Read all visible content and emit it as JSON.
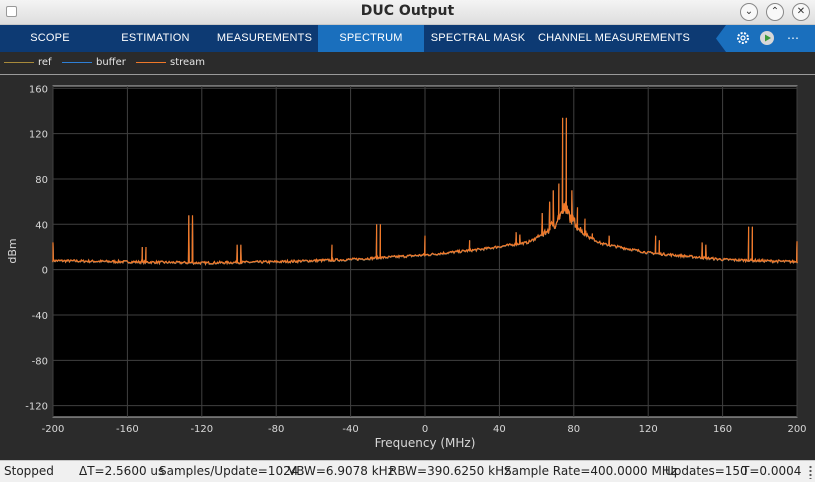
{
  "window": {
    "title": "DUC Output"
  },
  "tabs": [
    {
      "label": "SCOPE",
      "active": false
    },
    {
      "label": "ESTIMATION",
      "active": false
    },
    {
      "label": "MEASUREMENTS",
      "active": false
    },
    {
      "label": "SPECTRUM",
      "active": true
    },
    {
      "label": "SPECTRAL MASK",
      "active": false
    },
    {
      "label": "CHANNEL MEASUREMENTS",
      "active": false
    }
  ],
  "toolbar": {
    "icons": [
      "settings-icon",
      "run-icon",
      "more-icon"
    ]
  },
  "legend": [
    {
      "label": "ref",
      "color": "#a88a3a"
    },
    {
      "label": "buffer",
      "color": "#2e7fd6"
    },
    {
      "label": "stream",
      "color": "#f07828"
    }
  ],
  "chart_data": {
    "type": "line",
    "xlabel": "Frequency (MHz)",
    "ylabel": "dBm",
    "xlim": [
      -200,
      200
    ],
    "ylim": [
      -130,
      162
    ],
    "xticks": [
      -200,
      -160,
      -120,
      -80,
      -40,
      0,
      40,
      80,
      120,
      160,
      200
    ],
    "yticks": [
      160,
      120,
      80,
      40,
      0,
      -40,
      -80,
      -120
    ],
    "grid": true,
    "series": [
      {
        "name": "stream",
        "color": "#f07828",
        "baseline": [
          [
            -200,
            8
          ],
          [
            -160,
            7
          ],
          [
            -120,
            6
          ],
          [
            -80,
            7
          ],
          [
            -40,
            9
          ],
          [
            0,
            13
          ],
          [
            30,
            18
          ],
          [
            55,
            24
          ],
          [
            65,
            32
          ],
          [
            70,
            40
          ],
          [
            75,
            52
          ],
          [
            80,
            40
          ],
          [
            85,
            32
          ],
          [
            95,
            23
          ],
          [
            120,
            15
          ],
          [
            160,
            9
          ],
          [
            200,
            7
          ]
        ],
        "peaks": [
          [
            -200,
            24
          ],
          [
            -152,
            20
          ],
          [
            -150,
            20
          ],
          [
            -127,
            48
          ],
          [
            -125,
            48
          ],
          [
            -101,
            22
          ],
          [
            -99,
            22
          ],
          [
            -50,
            22
          ],
          [
            -26,
            40
          ],
          [
            -24,
            40
          ],
          [
            0,
            30
          ],
          [
            24,
            26
          ],
          [
            49,
            33
          ],
          [
            51,
            31
          ],
          [
            63,
            50
          ],
          [
            67,
            60
          ],
          [
            69,
            70
          ],
          [
            72,
            76
          ],
          [
            74,
            134
          ],
          [
            76,
            134
          ],
          [
            79,
            70
          ],
          [
            82,
            55
          ],
          [
            86,
            45
          ],
          [
            90,
            32
          ],
          [
            99,
            30
          ],
          [
            124,
            30
          ],
          [
            126,
            26
          ],
          [
            149,
            24
          ],
          [
            151,
            22
          ],
          [
            174,
            38
          ],
          [
            176,
            38
          ],
          [
            200,
            25
          ]
        ]
      },
      {
        "name": "buffer",
        "color": "#2e7fd6"
      },
      {
        "name": "ref",
        "color": "#a88a3a"
      }
    ]
  },
  "status": {
    "state": "Stopped",
    "delta_t": "ΔT=2.5600 us",
    "samples": "Samples/Update=1024",
    "vbw": "VBW=6.9078 kHz",
    "rbw": "RBW=390.6250 kHz",
    "sample_rate": "Sample Rate=400.0000 MHz",
    "updates": "Updates=150",
    "t": "T=0.0004"
  }
}
